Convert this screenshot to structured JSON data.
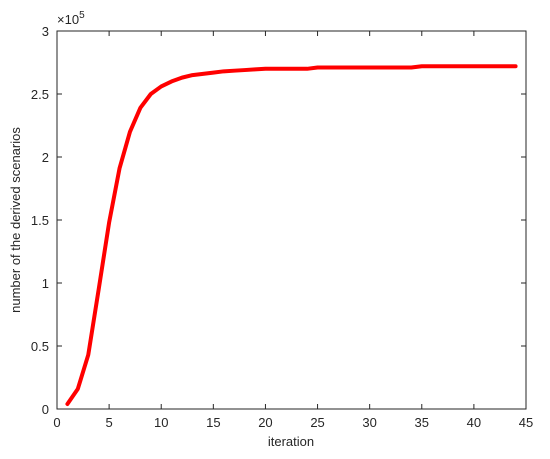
{
  "chart_data": {
    "type": "line",
    "x_label": "iteration",
    "y_label": "number of the derived scenarios",
    "y_multiplier": {
      "base": "×10",
      "exponent": "5"
    },
    "x": [
      1,
      2,
      3,
      4,
      5,
      6,
      7,
      8,
      9,
      10,
      11,
      12,
      13,
      14,
      15,
      16,
      17,
      18,
      19,
      20,
      21,
      22,
      23,
      24,
      25,
      26,
      27,
      28,
      29,
      30,
      31,
      32,
      33,
      34,
      35,
      36,
      37,
      38,
      39,
      40,
      41,
      42,
      43,
      44
    ],
    "series": [
      {
        "color": "#ff0000",
        "values": [
          0.04,
          0.16,
          0.43,
          0.95,
          1.48,
          1.91,
          2.2,
          2.39,
          2.5,
          2.56,
          2.6,
          2.63,
          2.65,
          2.66,
          2.67,
          2.68,
          2.685,
          2.69,
          2.695,
          2.7,
          2.7,
          2.7,
          2.7,
          2.7,
          2.71,
          2.71,
          2.71,
          2.71,
          2.71,
          2.71,
          2.71,
          2.71,
          2.71,
          2.71,
          2.72,
          2.72,
          2.72,
          2.72,
          2.72,
          2.72,
          2.72,
          2.72,
          2.72,
          2.72
        ]
      }
    ],
    "xlim": [
      0,
      45
    ],
    "xticks": [
      0,
      5,
      10,
      15,
      20,
      25,
      30,
      35,
      40,
      45
    ],
    "ylim": [
      0,
      3
    ],
    "yticks": [
      0,
      0.5,
      1,
      1.5,
      2,
      2.5,
      3
    ],
    "grid": false
  }
}
